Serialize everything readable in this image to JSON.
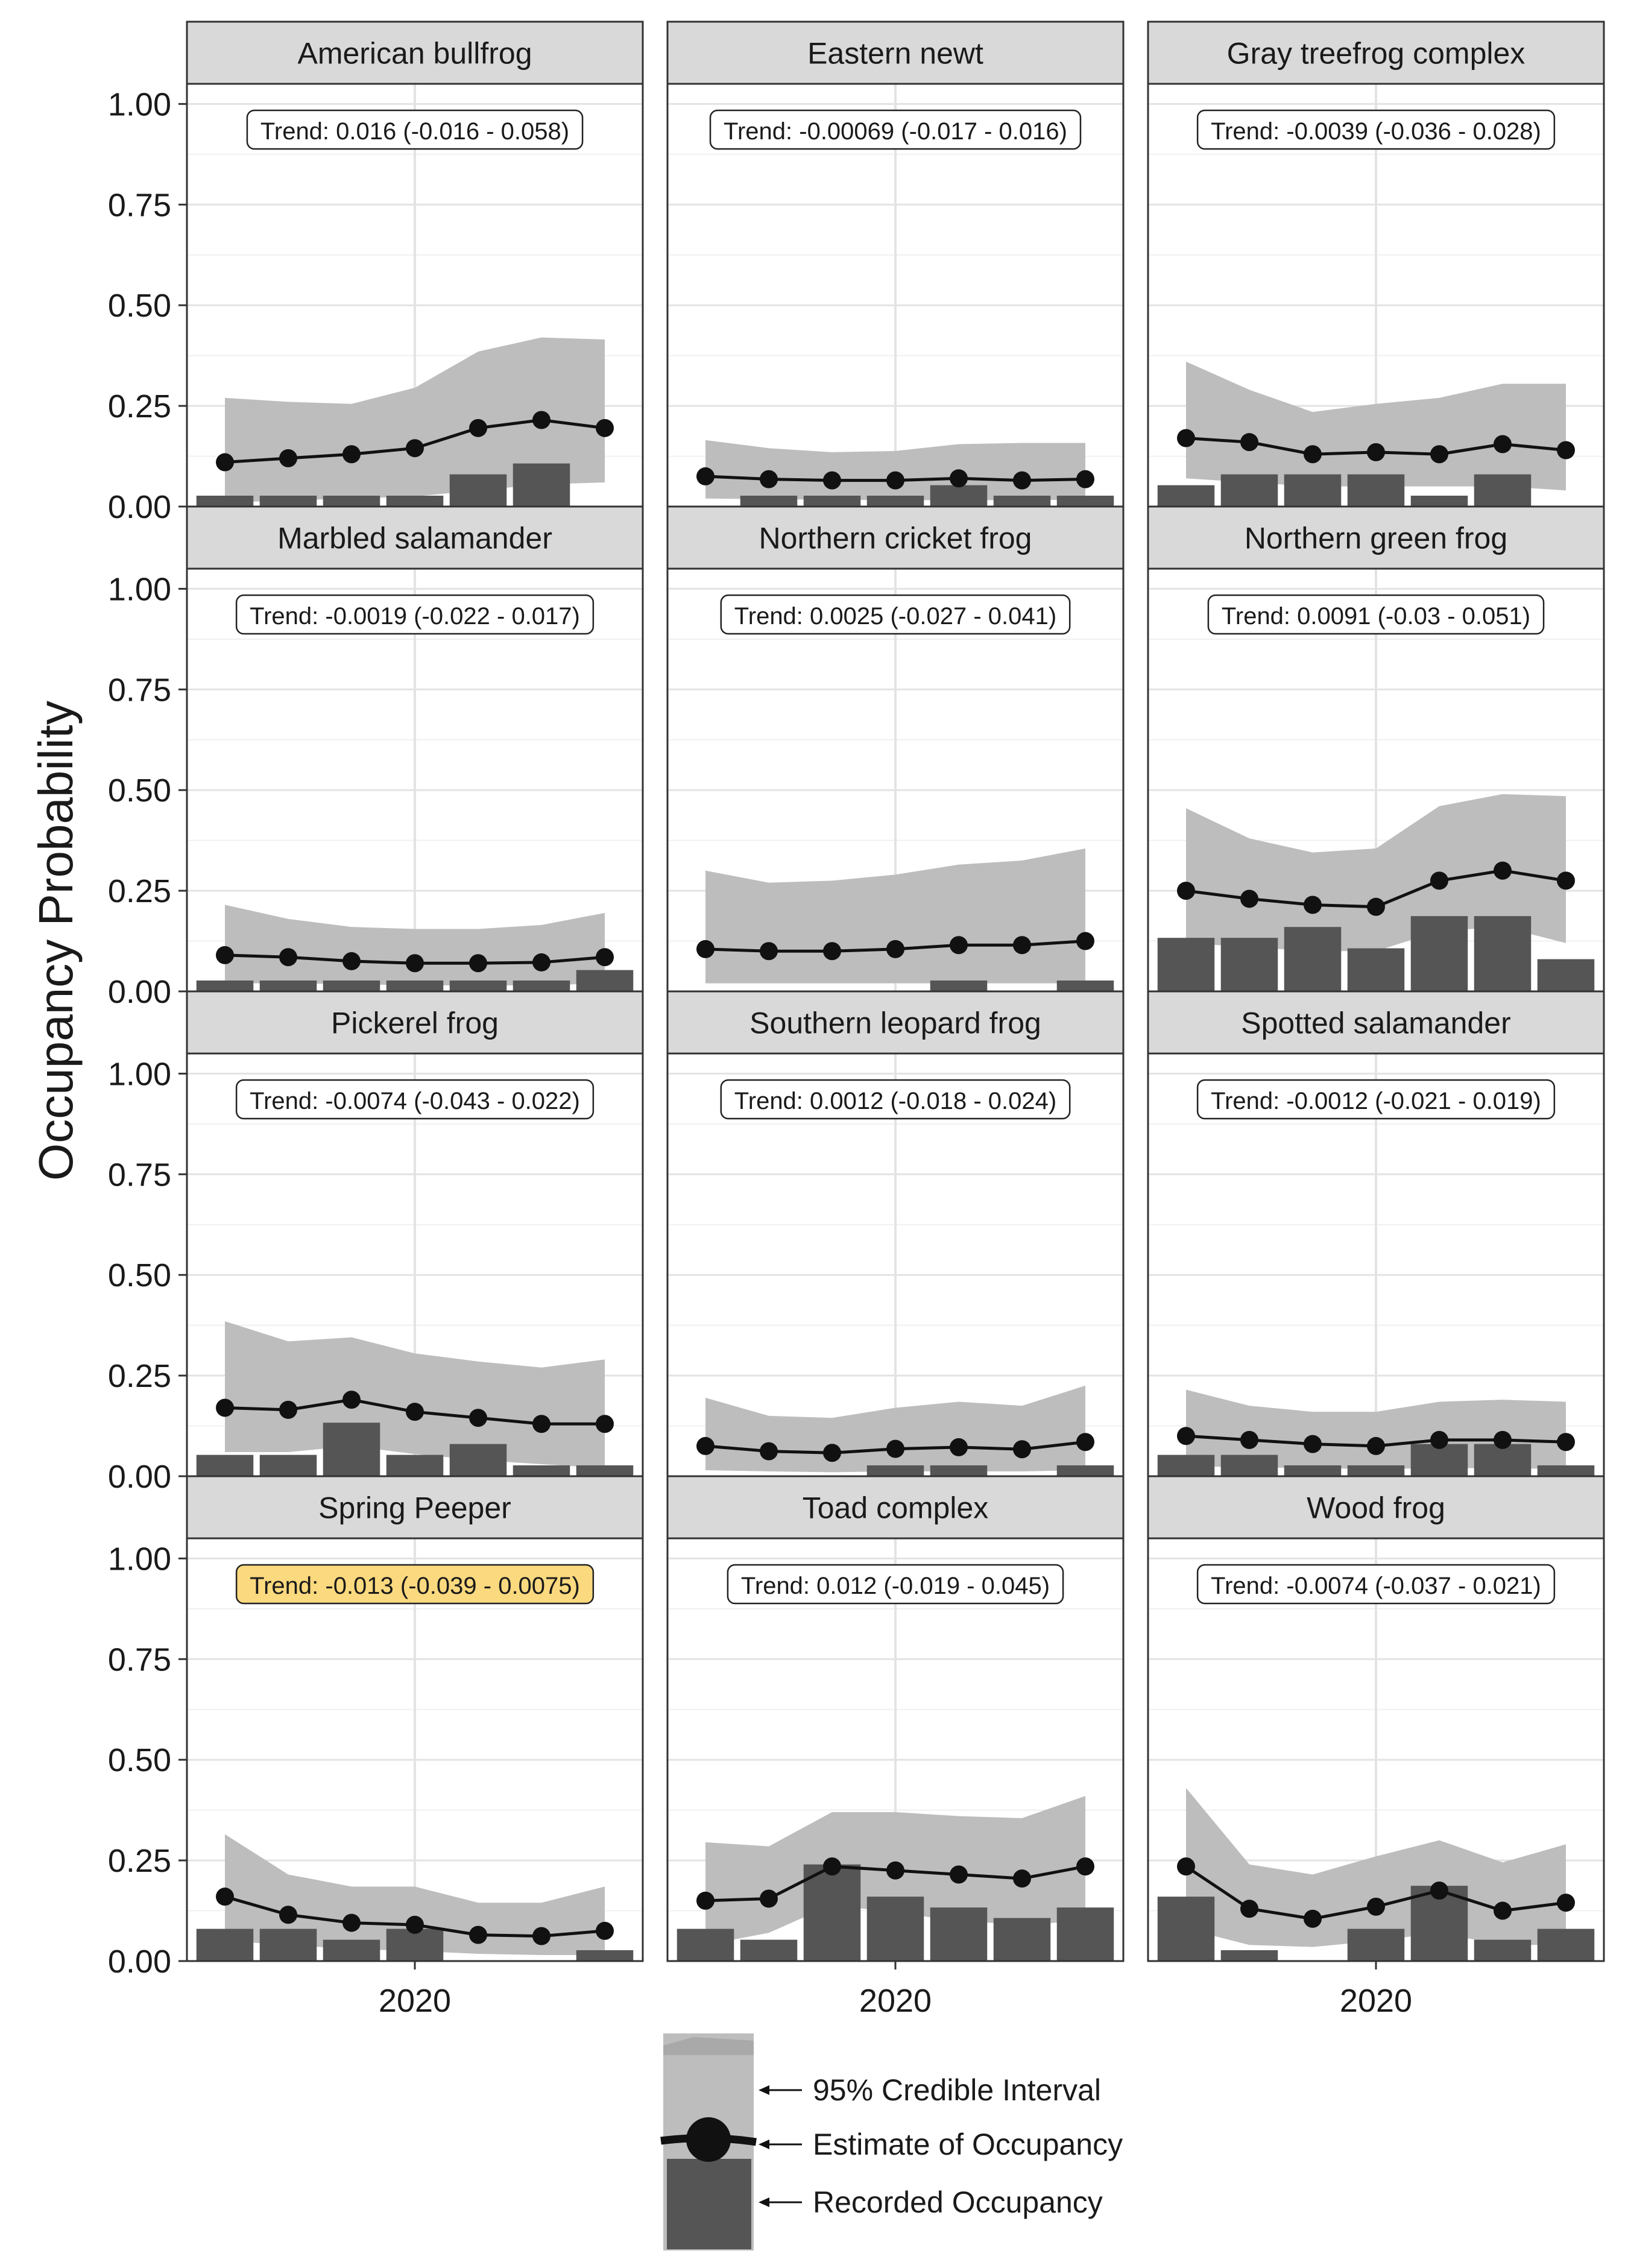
{
  "ylabel": "Occupancy Probability",
  "colors": {
    "ribbon": "#bdbdbd",
    "bar": "#555555",
    "line": "#111111",
    "strip_fill": "#d9d9d9",
    "highlight": "#fbd97e"
  },
  "chart_data": {
    "type": "line",
    "layout": "facet-grid",
    "columns": 3,
    "ylabel": "Occupancy Probability",
    "ylim": [
      0,
      1.05
    ],
    "yticks": [
      "0.00",
      "0.25",
      "0.50",
      "0.75",
      "1.00"
    ],
    "ytick_values": [
      0,
      0.25,
      0.5,
      0.75,
      1.0
    ],
    "xlim": [
      2016.4,
      2023.6
    ],
    "xtick_labels": [
      "2020"
    ],
    "xtick_values": [
      2020
    ],
    "x": [
      2017,
      2018,
      2019,
      2020,
      2021,
      2022,
      2023
    ],
    "grid": true,
    "panels": [
      {
        "species": "American bullfrog",
        "trend": "Trend: 0.016 (-0.016 - 0.058)",
        "highlight": false,
        "estimate": [
          0.11,
          0.12,
          0.13,
          0.145,
          0.195,
          0.215,
          0.195
        ],
        "lower": [
          0.01,
          0.015,
          0.02,
          0.025,
          0.04,
          0.055,
          0.06
        ],
        "upper": [
          0.27,
          0.26,
          0.255,
          0.295,
          0.385,
          0.42,
          0.415
        ],
        "recorded": [
          0.027,
          0.027,
          0.027,
          0.027,
          0.08,
          0.107,
          null
        ]
      },
      {
        "species": "Eastern newt",
        "trend": "Trend: -0.00069 (-0.017 - 0.016)",
        "highlight": false,
        "estimate": [
          0.075,
          0.068,
          0.065,
          0.065,
          0.07,
          0.065,
          0.068
        ],
        "lower": [
          0.02,
          0.018,
          0.017,
          0.016,
          0.016,
          0.016,
          0.017
        ],
        "upper": [
          0.165,
          0.145,
          0.135,
          0.138,
          0.155,
          0.158,
          0.158
        ],
        "recorded": [
          null,
          0.027,
          0.027,
          0.027,
          0.053,
          0.027,
          0.027
        ]
      },
      {
        "species": "Gray treefrog complex",
        "trend": "Trend: -0.0039 (-0.036 - 0.028)",
        "highlight": false,
        "estimate": [
          0.17,
          0.16,
          0.13,
          0.135,
          0.13,
          0.155,
          0.14
        ],
        "lower": [
          0.07,
          0.06,
          0.05,
          0.05,
          0.05,
          0.05,
          0.04
        ],
        "upper": [
          0.36,
          0.29,
          0.235,
          0.255,
          0.27,
          0.305,
          0.305
        ],
        "recorded": [
          0.053,
          0.08,
          0.08,
          0.08,
          0.027,
          0.08,
          null
        ]
      },
      {
        "species": "Marbled salamander",
        "trend": "Trend: -0.0019 (-0.022 - 0.017)",
        "highlight": false,
        "estimate": [
          0.09,
          0.085,
          0.075,
          0.07,
          0.07,
          0.072,
          0.085
        ],
        "lower": [
          0.02,
          0.02,
          0.018,
          0.015,
          0.015,
          0.015,
          0.02
        ],
        "upper": [
          0.215,
          0.18,
          0.16,
          0.155,
          0.155,
          0.165,
          0.195
        ],
        "recorded": [
          0.027,
          0.027,
          0.027,
          0.027,
          0.027,
          0.027,
          0.053
        ]
      },
      {
        "species": "Northern cricket frog",
        "trend": "Trend: 0.0025 (-0.027 - 0.041)",
        "highlight": false,
        "estimate": [
          0.105,
          0.1,
          0.1,
          0.105,
          0.115,
          0.115,
          0.125
        ],
        "lower": [
          0.02,
          0.02,
          0.02,
          0.02,
          0.02,
          0.02,
          0.02
        ],
        "upper": [
          0.3,
          0.27,
          0.275,
          0.29,
          0.315,
          0.325,
          0.355
        ],
        "recorded": [
          null,
          null,
          null,
          null,
          0.027,
          null,
          0.027
        ]
      },
      {
        "species": "Northern green frog",
        "trend": "Trend: 0.0091 (-0.03 - 0.051)",
        "highlight": false,
        "estimate": [
          0.25,
          0.23,
          0.215,
          0.21,
          0.275,
          0.3,
          0.275
        ],
        "lower": [
          0.12,
          0.11,
          0.1,
          0.1,
          0.15,
          0.16,
          0.12
        ],
        "upper": [
          0.455,
          0.38,
          0.345,
          0.355,
          0.46,
          0.49,
          0.485
        ],
        "recorded": [
          0.133,
          0.133,
          0.16,
          0.107,
          0.187,
          0.187,
          0.08
        ]
      },
      {
        "species": "Pickerel frog",
        "trend": "Trend: -0.0074 (-0.043 - 0.022)",
        "highlight": false,
        "estimate": [
          0.17,
          0.165,
          0.19,
          0.16,
          0.145,
          0.13,
          0.13
        ],
        "lower": [
          0.06,
          0.06,
          0.075,
          0.055,
          0.04,
          0.03,
          0.02
        ],
        "upper": [
          0.385,
          0.335,
          0.345,
          0.305,
          0.285,
          0.27,
          0.29
        ],
        "recorded": [
          0.053,
          0.053,
          0.133,
          0.053,
          0.08,
          0.027,
          0.027
        ]
      },
      {
        "species": "Southern leopard frog",
        "trend": "Trend: 0.0012 (-0.018 - 0.024)",
        "highlight": false,
        "estimate": [
          0.075,
          0.062,
          0.058,
          0.068,
          0.072,
          0.067,
          0.085
        ],
        "lower": [
          0.015,
          0.012,
          0.01,
          0.012,
          0.012,
          0.012,
          0.015
        ],
        "upper": [
          0.195,
          0.15,
          0.145,
          0.17,
          0.185,
          0.175,
          0.225
        ],
        "recorded": [
          null,
          null,
          null,
          0.027,
          0.027,
          null,
          0.027
        ]
      },
      {
        "species": "Spotted salamander",
        "trend": "Trend: -0.0012 (-0.021 - 0.019)",
        "highlight": false,
        "estimate": [
          0.1,
          0.09,
          0.08,
          0.075,
          0.09,
          0.09,
          0.085
        ],
        "lower": [
          0.025,
          0.022,
          0.02,
          0.018,
          0.02,
          0.02,
          0.018
        ],
        "upper": [
          0.215,
          0.175,
          0.16,
          0.16,
          0.185,
          0.19,
          0.185
        ],
        "recorded": [
          0.053,
          0.053,
          0.027,
          0.027,
          0.08,
          0.08,
          0.027
        ]
      },
      {
        "species": "Spring Peeper",
        "trend": "Trend: -0.013 (-0.039 - 0.0075)",
        "highlight": true,
        "estimate": [
          0.16,
          0.115,
          0.095,
          0.09,
          0.065,
          0.062,
          0.075
        ],
        "lower": [
          0.05,
          0.04,
          0.03,
          0.025,
          0.018,
          0.015,
          0.015
        ],
        "upper": [
          0.315,
          0.215,
          0.185,
          0.185,
          0.145,
          0.145,
          0.185
        ],
        "recorded": [
          0.08,
          0.08,
          0.053,
          0.08,
          null,
          null,
          0.027
        ]
      },
      {
        "species": "Toad complex",
        "trend": "Trend: 0.012 (-0.019 - 0.045)",
        "highlight": false,
        "estimate": [
          0.15,
          0.155,
          0.235,
          0.225,
          0.215,
          0.205,
          0.235
        ],
        "lower": [
          0.04,
          0.07,
          0.14,
          0.12,
          0.1,
          0.09,
          0.1
        ],
        "upper": [
          0.295,
          0.285,
          0.37,
          0.37,
          0.36,
          0.355,
          0.41
        ],
        "recorded": [
          0.08,
          0.053,
          0.24,
          0.16,
          0.133,
          0.107,
          0.133
        ]
      },
      {
        "species": "Wood frog",
        "trend": "Trend: -0.0074 (-0.037 - 0.021)",
        "highlight": false,
        "estimate": [
          0.235,
          0.13,
          0.105,
          0.135,
          0.175,
          0.125,
          0.145
        ],
        "lower": [
          0.08,
          0.04,
          0.035,
          0.05,
          0.07,
          0.04,
          0.04
        ],
        "upper": [
          0.43,
          0.24,
          0.215,
          0.26,
          0.3,
          0.245,
          0.29
        ],
        "recorded": [
          0.16,
          0.027,
          null,
          0.08,
          0.187,
          0.053,
          0.08
        ]
      }
    ],
    "legend": {
      "position": "bottom-center",
      "entries": [
        {
          "label": "95% Credible Interval",
          "kind": "ribbon"
        },
        {
          "label": "Estimate of Occupancy",
          "kind": "line-point"
        },
        {
          "label": "Recorded Occupancy",
          "kind": "bar"
        }
      ]
    }
  }
}
